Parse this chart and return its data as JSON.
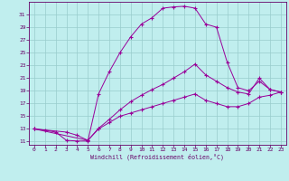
{
  "xlabel": "Windchill (Refroidissement éolien,°C)",
  "bg_color": "#c0eeee",
  "grid_color": "#99cccc",
  "line_color": "#990099",
  "line1_x": [
    0,
    1,
    2,
    3,
    4,
    5,
    6,
    7,
    8,
    9,
    10,
    11,
    12,
    13,
    14,
    15,
    16,
    17,
    18,
    19,
    20,
    21,
    22,
    23
  ],
  "line1_y": [
    13,
    12.8,
    12.5,
    11.2,
    11.1,
    11.1,
    18.5,
    22.0,
    25.0,
    27.5,
    29.5,
    30.5,
    32.0,
    32.2,
    32.3,
    32.0,
    29.5,
    29.0,
    23.5,
    19.5,
    19.0,
    20.5,
    19.2,
    18.8
  ],
  "line2_x": [
    0,
    3,
    4,
    5,
    6,
    7,
    8,
    9,
    10,
    11,
    12,
    13,
    14,
    15,
    16,
    17,
    18,
    19,
    20,
    21,
    22,
    23
  ],
  "line2_y": [
    13,
    12.5,
    12.0,
    11.2,
    13.1,
    14.5,
    16.0,
    17.3,
    18.3,
    19.2,
    20.0,
    21.0,
    22.0,
    23.2,
    21.5,
    20.5,
    19.5,
    18.8,
    18.5,
    21.0,
    19.2,
    18.8
  ],
  "line3_x": [
    0,
    5,
    6,
    7,
    8,
    9,
    10,
    11,
    12,
    13,
    14,
    15,
    16,
    17,
    18,
    19,
    20,
    21,
    22,
    23
  ],
  "line3_y": [
    13,
    11.2,
    13.0,
    14.0,
    15.0,
    15.5,
    16.0,
    16.5,
    17.0,
    17.5,
    18.0,
    18.5,
    17.5,
    17.0,
    16.5,
    16.5,
    17.0,
    18.0,
    18.3,
    18.8
  ],
  "xlim": [
    -0.5,
    23.5
  ],
  "ylim": [
    10.5,
    33
  ],
  "yticks": [
    11,
    13,
    15,
    17,
    19,
    21,
    23,
    25,
    27,
    29,
    31
  ],
  "xticks": [
    0,
    1,
    2,
    3,
    4,
    5,
    6,
    7,
    8,
    9,
    10,
    11,
    12,
    13,
    14,
    15,
    16,
    17,
    18,
    19,
    20,
    21,
    22,
    23
  ]
}
